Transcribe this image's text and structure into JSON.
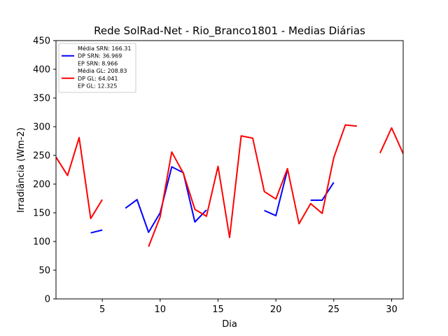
{
  "chart_data": {
    "type": "line",
    "title": "Rede SolRad-Net - Rio_Branco1801 - Medias Diárias",
    "xlabel": "Dia",
    "ylabel": "Irradiância (Wm-2)",
    "xlim": [
      1,
      31
    ],
    "ylim": [
      0,
      450
    ],
    "xticks": [
      5,
      10,
      15,
      20,
      25,
      30
    ],
    "yticks": [
      0,
      50,
      100,
      150,
      200,
      250,
      300,
      350,
      400,
      450
    ],
    "grid": false,
    "legend_position": "upper-left",
    "series": [
      {
        "name": "SRN",
        "color": "#0000ff",
        "legend_lines": [
          "Média SRN: 166.31",
          "DP SRN: 36.969",
          "EP SRN: 8.966"
        ],
        "x": [
          1,
          2,
          3,
          4,
          5,
          6,
          7,
          8,
          9,
          10,
          11,
          12,
          13,
          14,
          15,
          16,
          17,
          18,
          19,
          20,
          21,
          22,
          23,
          24,
          25,
          26,
          27,
          28,
          29,
          30,
          31
        ],
        "y": [
          null,
          null,
          null,
          115,
          120,
          null,
          158,
          173,
          116,
          150,
          230,
          220,
          134,
          155,
          null,
          null,
          null,
          null,
          154,
          145,
          225,
          null,
          172,
          172,
          203,
          null,
          null,
          null,
          null,
          null,
          null
        ]
      },
      {
        "name": "GL",
        "color": "#ff0000",
        "legend_lines": [
          "Média GL: 208.83",
          "DP GL: 64.041",
          "EP GL: 12.325"
        ],
        "x": [
          1,
          2,
          3,
          4,
          5,
          6,
          7,
          8,
          9,
          10,
          11,
          12,
          13,
          14,
          15,
          16,
          17,
          18,
          19,
          20,
          21,
          22,
          23,
          24,
          25,
          26,
          27,
          28,
          29,
          30,
          31
        ],
        "y": [
          247,
          215,
          281,
          140,
          173,
          null,
          null,
          null,
          91,
          143,
          256,
          219,
          156,
          144,
          231,
          107,
          284,
          280,
          187,
          174,
          227,
          131,
          166,
          149,
          246,
          303,
          301,
          null,
          254,
          298,
          253
        ]
      }
    ]
  }
}
